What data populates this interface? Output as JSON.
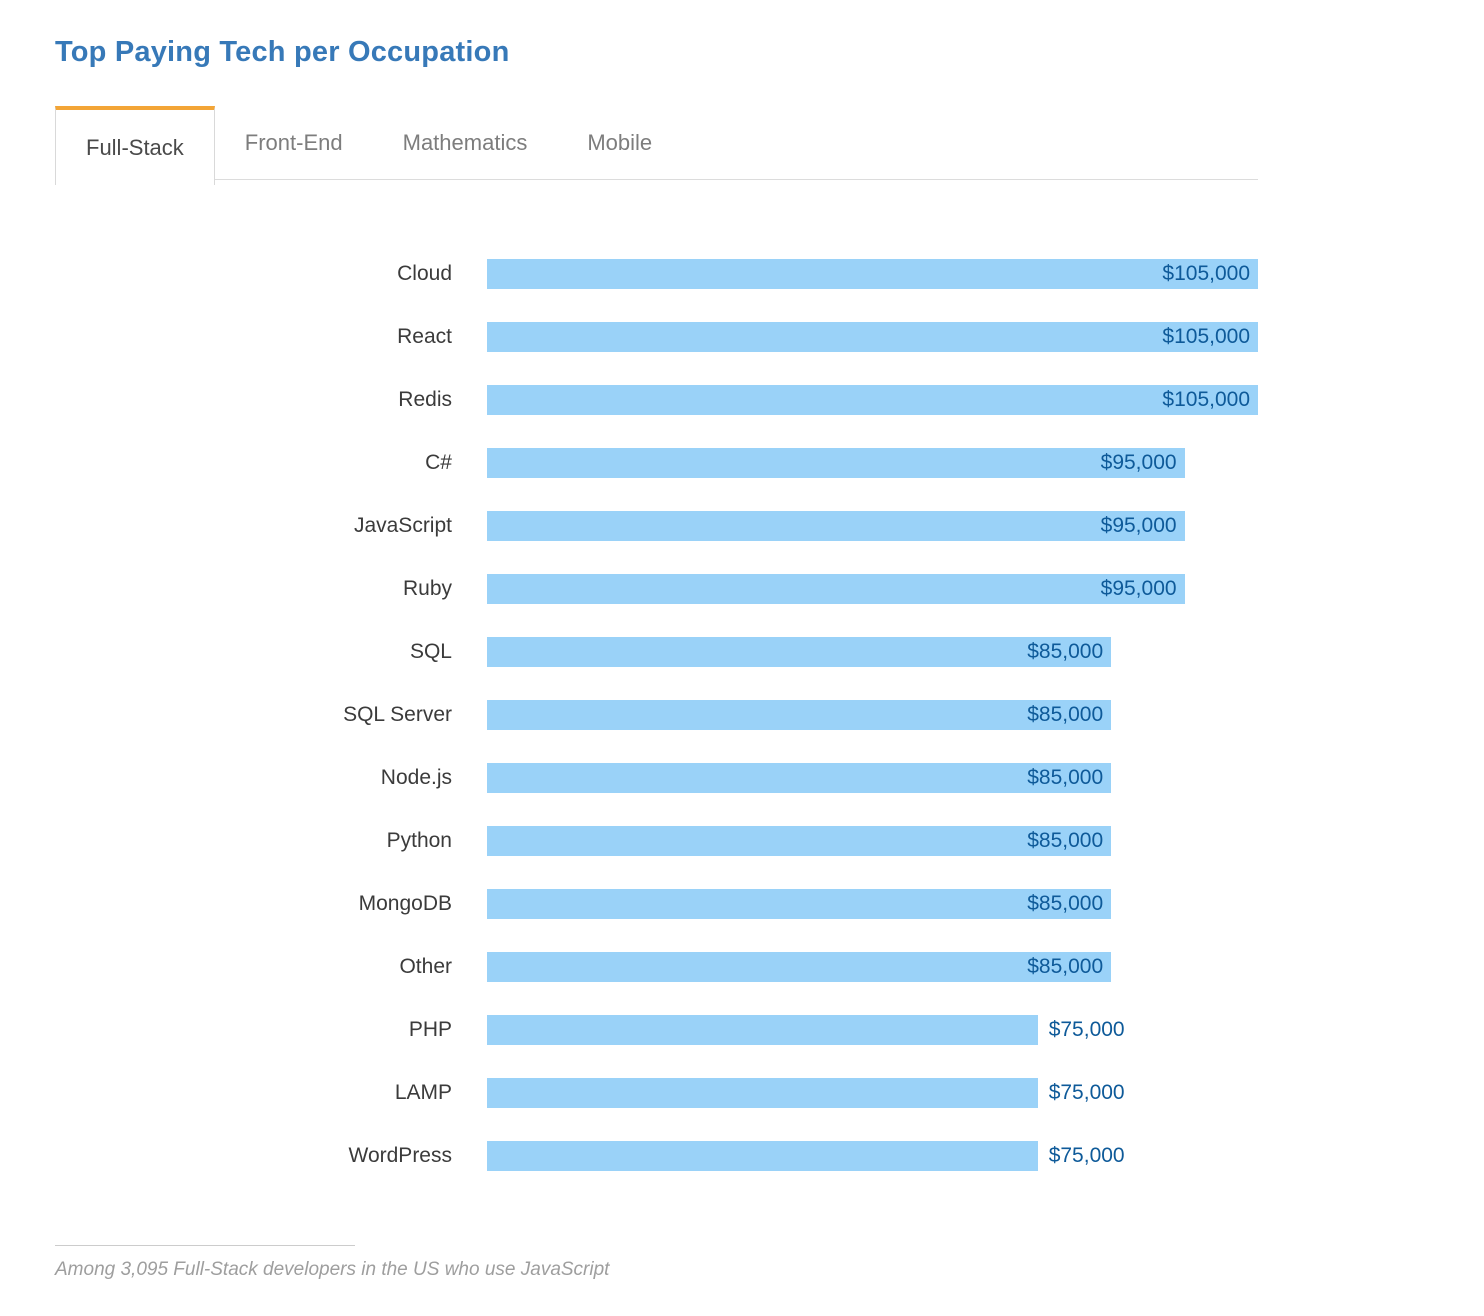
{
  "header": {
    "title": "Top Paying Tech per Occupation"
  },
  "tabs": {
    "active_index": 0,
    "items": [
      {
        "label": "Full-Stack"
      },
      {
        "label": "Front-End"
      },
      {
        "label": "Mathematics"
      },
      {
        "label": "Mobile"
      }
    ]
  },
  "chart_data": {
    "type": "bar",
    "orientation": "horizontal",
    "title": "Top Paying Tech per Occupation",
    "categories": [
      "Cloud",
      "React",
      "Redis",
      "C#",
      "JavaScript",
      "Ruby",
      "SQL",
      "SQL Server",
      "Node.js",
      "Python",
      "MongoDB",
      "Other",
      "PHP",
      "LAMP",
      "WordPress"
    ],
    "values": [
      105000,
      105000,
      105000,
      95000,
      95000,
      95000,
      85000,
      85000,
      85000,
      85000,
      85000,
      85000,
      75000,
      75000,
      75000
    ],
    "value_labels": [
      "$105,000",
      "$105,000",
      "$105,000",
      "$95,000",
      "$95,000",
      "$95,000",
      "$85,000",
      "$85,000",
      "$85,000",
      "$85,000",
      "$85,000",
      "$85,000",
      "$75,000",
      "$75,000",
      "$75,000"
    ],
    "xlim": [
      0,
      105000
    ],
    "grid": false,
    "legend": false,
    "bar_color": "#9ad2f8",
    "value_label_color": "#0e5a99",
    "label_inside_threshold": 0.75
  },
  "footnote": "Among 3,095 Full-Stack developers in the US who use JavaScript",
  "colors": {
    "accent_orange": "#f3a536",
    "title_blue": "#3779b8",
    "bar_blue": "#9ad2f8",
    "value_navy": "#0e5a99"
  }
}
